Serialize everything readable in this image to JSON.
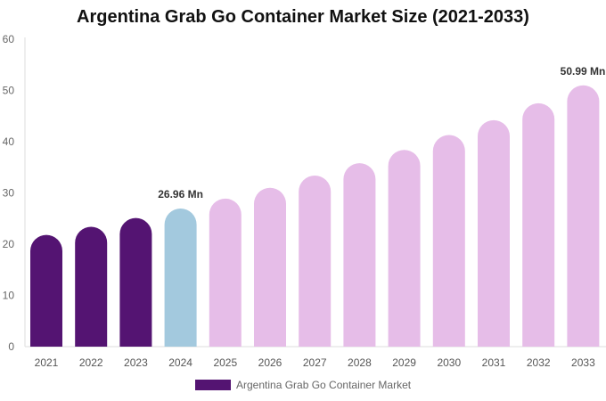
{
  "chart_data": {
    "type": "bar",
    "title": "Argentina Grab Go Container Market Size (2021-2033)",
    "categories": [
      "2021",
      "2022",
      "2023",
      "2024",
      "2025",
      "2026",
      "2027",
      "2028",
      "2029",
      "2030",
      "2031",
      "2032",
      "2033"
    ],
    "series": [
      {
        "name": "Argentina Grab Go Container Market",
        "values": [
          21.8,
          23.4,
          25.1,
          26.96,
          28.9,
          31.0,
          33.4,
          35.8,
          38.4,
          41.3,
          44.2,
          47.5,
          50.99
        ]
      }
    ],
    "data_labels": [
      {
        "category": "2024",
        "text": "26.96 Mn"
      },
      {
        "category": "2033",
        "text": "50.99 Mn"
      }
    ],
    "yticks": [
      0,
      10,
      20,
      30,
      40,
      50,
      60
    ],
    "ylim": [
      0,
      60
    ],
    "grid": false,
    "legend_position": "bottom",
    "colors": {
      "historical": "#541472",
      "base_year": "#a3c9de",
      "forecast": "#e6bde8"
    },
    "color_groups": [
      "historical",
      "historical",
      "historical",
      "base_year",
      "forecast",
      "forecast",
      "forecast",
      "forecast",
      "forecast",
      "forecast",
      "forecast",
      "forecast",
      "forecast"
    ]
  }
}
